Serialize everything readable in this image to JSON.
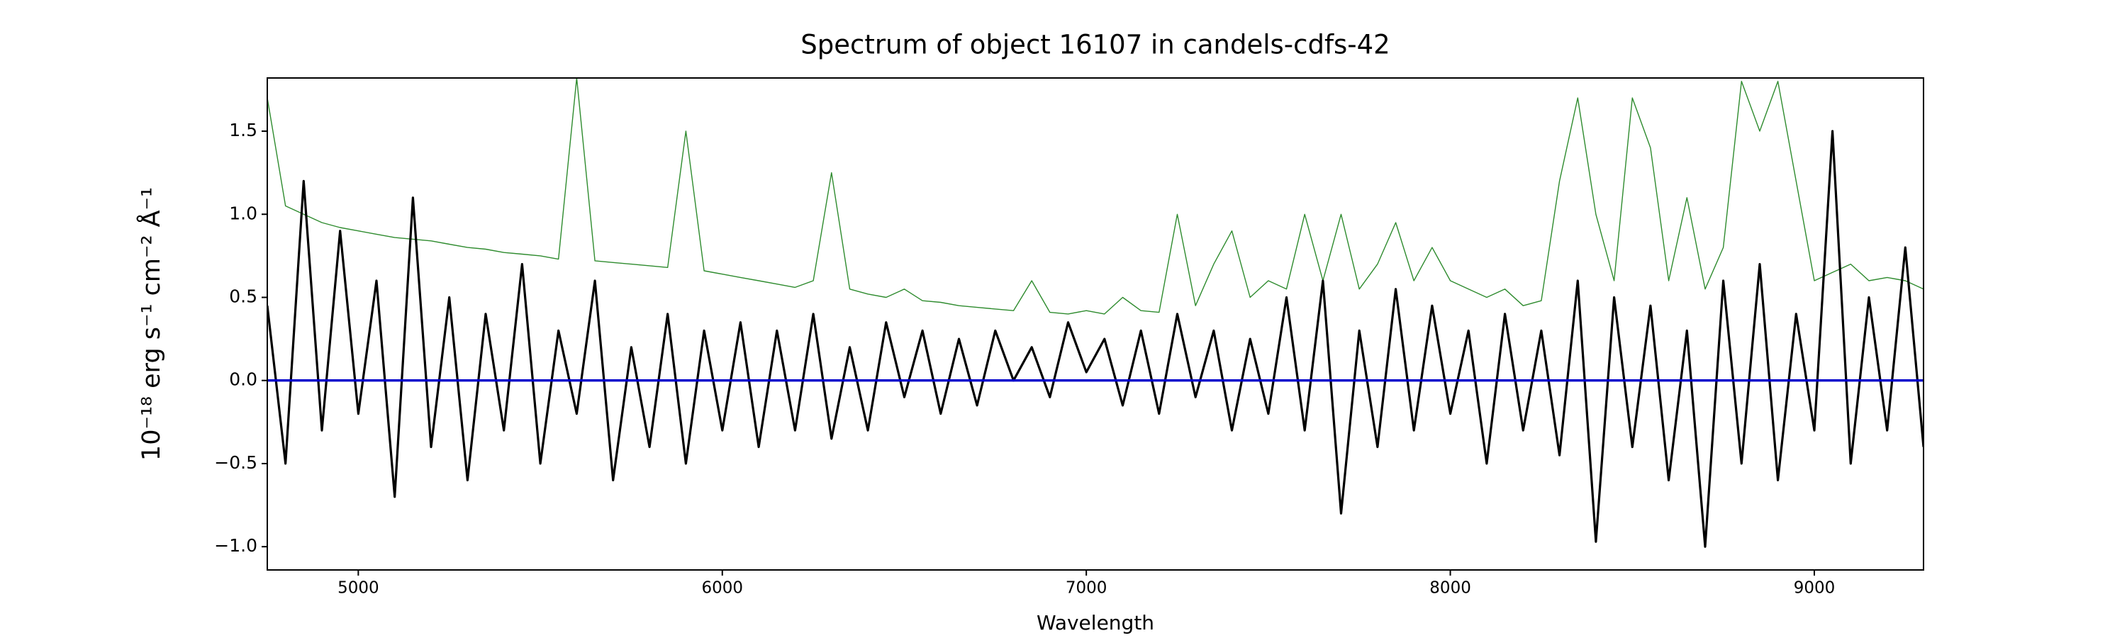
{
  "chart_data": {
    "type": "line",
    "title": "Spectrum of object 16107 in candels-cdfs-42",
    "x_label": "Wavelength",
    "y_label": "10⁻¹⁸ erg s⁻¹ cm⁻² Å⁻¹",
    "xlim": [
      4750,
      9300
    ],
    "ylim": [
      -1.14,
      1.82
    ],
    "xticks": [
      5000,
      6000,
      7000,
      8000,
      9000
    ],
    "yticks": [
      {
        "value": -1.0,
        "label": "−1.0"
      },
      {
        "value": -0.5,
        "label": "−0.5"
      },
      {
        "value": 0.0,
        "label": "0.0"
      },
      {
        "value": 0.5,
        "label": "0.5"
      },
      {
        "value": 1.0,
        "label": "1.0"
      },
      {
        "value": 1.5,
        "label": "1.5"
      }
    ],
    "x": [
      4750,
      4800,
      4850,
      4900,
      4950,
      5000,
      5050,
      5100,
      5150,
      5200,
      5250,
      5300,
      5350,
      5400,
      5450,
      5500,
      5550,
      5600,
      5650,
      5700,
      5750,
      5800,
      5850,
      5900,
      5950,
      6000,
      6050,
      6100,
      6150,
      6200,
      6250,
      6300,
      6350,
      6400,
      6450,
      6500,
      6550,
      6600,
      6650,
      6700,
      6750,
      6800,
      6850,
      6900,
      6950,
      7000,
      7050,
      7100,
      7150,
      7200,
      7250,
      7300,
      7350,
      7400,
      7450,
      7500,
      7550,
      7600,
      7650,
      7700,
      7750,
      7800,
      7850,
      7900,
      7950,
      8000,
      8050,
      8100,
      8150,
      8200,
      8250,
      8300,
      8350,
      8400,
      8450,
      8500,
      8550,
      8600,
      8650,
      8700,
      8750,
      8800,
      8850,
      8900,
      8950,
      9000,
      9050,
      9100,
      9150,
      9200,
      9250,
      9300
    ],
    "series": [
      {
        "color": "#2e8b2e",
        "values": [
          1.7,
          1.05,
          1.0,
          0.95,
          0.92,
          0.9,
          0.88,
          0.86,
          0.85,
          0.84,
          0.82,
          0.8,
          0.79,
          0.77,
          0.76,
          0.75,
          0.73,
          1.82,
          0.72,
          0.71,
          0.7,
          0.69,
          0.68,
          1.5,
          0.66,
          0.64,
          0.62,
          0.6,
          0.58,
          0.56,
          0.6,
          1.25,
          0.55,
          0.52,
          0.5,
          0.55,
          0.48,
          0.47,
          0.45,
          0.44,
          0.43,
          0.42,
          0.6,
          0.41,
          0.4,
          0.42,
          0.4,
          0.5,
          0.42,
          0.41,
          1.0,
          0.45,
          0.7,
          0.9,
          0.5,
          0.6,
          0.55,
          1.0,
          0.6,
          1.0,
          0.55,
          0.7,
          0.95,
          0.6,
          0.8,
          0.6,
          0.55,
          0.5,
          0.55,
          0.45,
          0.48,
          1.2,
          1.7,
          1.0,
          0.6,
          1.7,
          1.4,
          0.6,
          1.1,
          0.55,
          0.8,
          1.8,
          1.5,
          1.8,
          1.2,
          0.6,
          0.65,
          0.7,
          0.6,
          0.62,
          0.6,
          0.55
        ]
      },
      {
        "color": "#000000",
        "values": [
          0.45,
          -0.5,
          1.2,
          -0.3,
          0.9,
          -0.2,
          0.6,
          -0.7,
          1.1,
          -0.4,
          0.5,
          -0.6,
          0.4,
          -0.3,
          0.7,
          -0.5,
          0.3,
          -0.2,
          0.6,
          -0.6,
          0.2,
          -0.4,
          0.4,
          -0.5,
          0.3,
          -0.3,
          0.35,
          -0.4,
          0.3,
          -0.3,
          0.4,
          -0.35,
          0.2,
          -0.3,
          0.35,
          -0.1,
          0.3,
          -0.2,
          0.25,
          -0.15,
          0.3,
          0.0,
          0.2,
          -0.1,
          0.35,
          0.05,
          0.25,
          -0.15,
          0.3,
          -0.2,
          0.4,
          -0.1,
          0.3,
          -0.3,
          0.25,
          -0.2,
          0.5,
          -0.3,
          0.6,
          -0.8,
          0.3,
          -0.4,
          0.55,
          -0.3,
          0.45,
          -0.2,
          0.3,
          -0.5,
          0.4,
          -0.3,
          0.3,
          -0.45,
          0.6,
          -0.97,
          0.5,
          -0.4,
          0.45,
          -0.6,
          0.3,
          -1.0,
          0.6,
          -0.5,
          0.7,
          -0.6,
          0.4,
          -0.3,
          1.5,
          -0.5,
          0.5,
          -0.3,
          0.8,
          -0.4
        ]
      },
      {
        "color": "#0000cc",
        "values": [
          0,
          0,
          0,
          0,
          0,
          0,
          0,
          0,
          0,
          0,
          0,
          0,
          0,
          0,
          0,
          0,
          0,
          0,
          0,
          0,
          0,
          0,
          0,
          0,
          0,
          0,
          0,
          0,
          0,
          0,
          0,
          0,
          0,
          0,
          0,
          0,
          0,
          0,
          0,
          0,
          0,
          0,
          0,
          0,
          0,
          0,
          0,
          0,
          0,
          0,
          0,
          0,
          0,
          0,
          0,
          0,
          0,
          0,
          0,
          0,
          0,
          0,
          0,
          0,
          0,
          0,
          0,
          0,
          0,
          0,
          0,
          0,
          0,
          0,
          0,
          0,
          0,
          0,
          0,
          0,
          0,
          0,
          0,
          0,
          0,
          0,
          0,
          0,
          0,
          0,
          0,
          0
        ]
      }
    ]
  }
}
